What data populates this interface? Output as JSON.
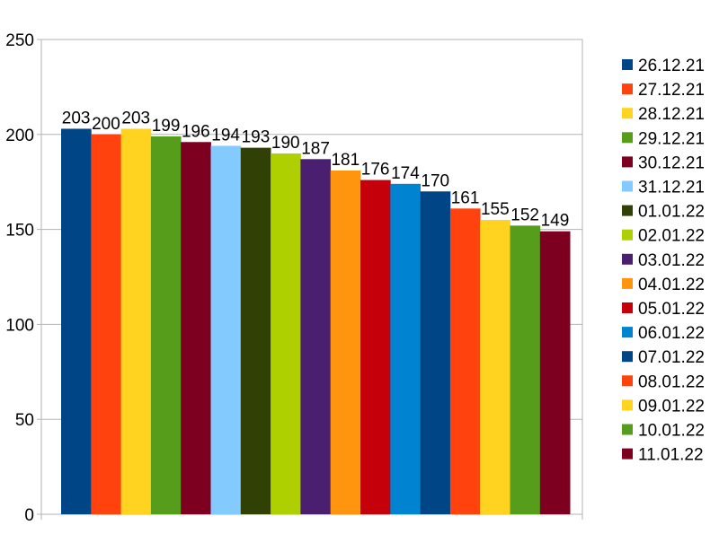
{
  "chart_data": {
    "type": "bar",
    "title": "",
    "xlabel": "",
    "ylabel": "",
    "ylim": [
      0,
      250
    ],
    "yticks": [
      "0",
      "50",
      "100",
      "150",
      "200",
      "250"
    ],
    "grid": "horizontal",
    "legend_position": "right",
    "series": [
      {
        "name": "26.12.21",
        "value": 203,
        "color": "#004586"
      },
      {
        "name": "27.12.21",
        "value": 200,
        "color": "#ff420e"
      },
      {
        "name": "28.12.21",
        "value": 203,
        "color": "#ffd320"
      },
      {
        "name": "29.12.21",
        "value": 199,
        "color": "#579d1c"
      },
      {
        "name": "30.12.21",
        "value": 196,
        "color": "#7e0021"
      },
      {
        "name": "31.12.21",
        "value": 194,
        "color": "#83caff"
      },
      {
        "name": "01.01.22",
        "value": 193,
        "color": "#314004"
      },
      {
        "name": "02.01.22",
        "value": 190,
        "color": "#aecf00"
      },
      {
        "name": "03.01.22",
        "value": 187,
        "color": "#4b1f6f"
      },
      {
        "name": "04.01.22",
        "value": 181,
        "color": "#ff950e"
      },
      {
        "name": "05.01.22",
        "value": 176,
        "color": "#c5000b"
      },
      {
        "name": "06.01.22",
        "value": 174,
        "color": "#0084d1"
      },
      {
        "name": "07.01.22",
        "value": 170,
        "color": "#004586"
      },
      {
        "name": "08.01.22",
        "value": 161,
        "color": "#ff420e"
      },
      {
        "name": "09.01.22",
        "value": 155,
        "color": "#ffd320"
      },
      {
        "name": "10.01.22",
        "value": 152,
        "color": "#579d1c"
      },
      {
        "name": "11.01.22",
        "value": 149,
        "color": "#7e0021"
      }
    ]
  }
}
